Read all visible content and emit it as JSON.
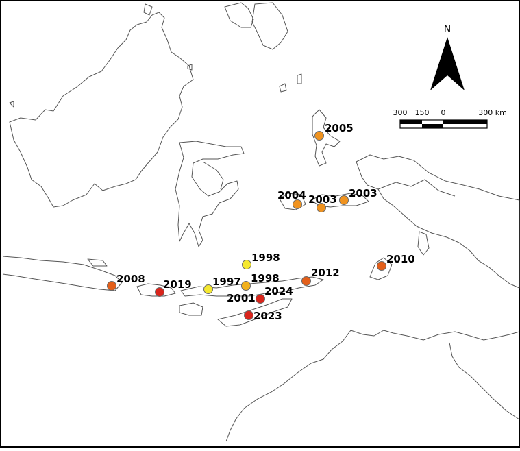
{
  "north_arrow": {
    "label": "N"
  },
  "scale_bar": {
    "labels": [
      "300",
      "150",
      "0",
      "300 km"
    ]
  },
  "colors": {
    "yellow": "#f5e830",
    "amber": "#f2b11c",
    "orange": "#f0931f",
    "dark_orange": "#e35f1a",
    "red": "#d9251c"
  },
  "markers": [
    {
      "year": "2005",
      "color": "#f0931f"
    },
    {
      "year": "2004",
      "color": "#f0931f"
    },
    {
      "year": "2003",
      "color": "#f0931f"
    },
    {
      "year": "2003",
      "color": "#f0931f"
    },
    {
      "year": "2010",
      "color": "#e35f1a"
    },
    {
      "year": "2012",
      "color": "#e35f1a"
    },
    {
      "year": "2008",
      "color": "#e35f1a"
    },
    {
      "year": "2019",
      "color": "#d9251c"
    },
    {
      "year": "1997",
      "color": "#f5e830"
    },
    {
      "year": "1998",
      "color": "#f5e830"
    },
    {
      "year": "1998",
      "color": "#f2b11c"
    },
    {
      "year": "2001",
      "color": ""
    },
    {
      "year": "2024",
      "color": "#d9251c"
    },
    {
      "year": "2023",
      "color": "#d9251c"
    }
  ]
}
